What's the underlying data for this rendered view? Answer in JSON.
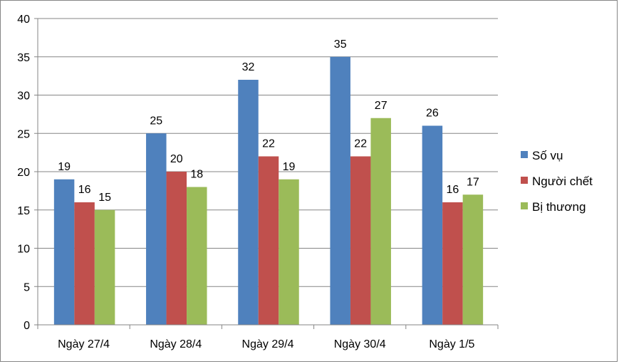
{
  "chart_data": {
    "type": "bar",
    "title": "",
    "xlabel": "",
    "ylabel": "",
    "ylim": [
      0,
      40
    ],
    "yticks": [
      0,
      5,
      10,
      15,
      20,
      25,
      30,
      35,
      40
    ],
    "grid": true,
    "legend_position": "right",
    "categories": [
      "Ngày 27/4",
      "Ngày 28/4",
      "Ngày 29/4",
      "Ngày 30/4",
      "Ngày 1/5"
    ],
    "series": [
      {
        "name": "Số vụ",
        "color": "#4F81BD",
        "values": [
          19,
          25,
          32,
          35,
          26
        ]
      },
      {
        "name": "Người chết",
        "color": "#C0504D",
        "values": [
          16,
          20,
          22,
          22,
          16
        ]
      },
      {
        "name": "Bị thương",
        "color": "#9BBB59",
        "values": [
          15,
          18,
          19,
          27,
          17
        ]
      }
    ]
  }
}
